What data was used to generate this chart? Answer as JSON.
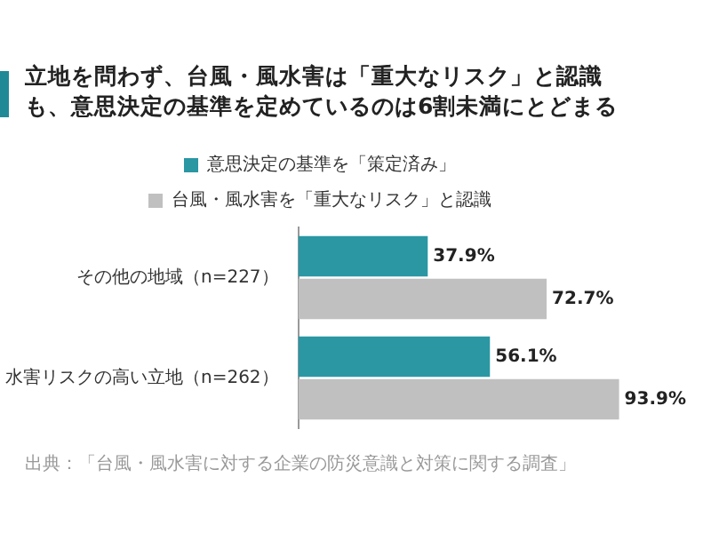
{
  "chart_data": {
    "type": "bar",
    "orientation": "horizontal",
    "title": "立地を問わず、台風・風水害は「重大なリスク」と認識も、意思決定の基準を定めているのは6割未満にとどまる",
    "categories": [
      "その他の地域（n=227）",
      "水害リスクの高い立地（n=262）"
    ],
    "series": [
      {
        "name": "意思決定の基準を「策定済み」",
        "color": "#2a97a3",
        "values": [
          37.9,
          56.1
        ],
        "value_labels": [
          "37.9%",
          "56.1%"
        ]
      },
      {
        "name": "台風・風水害を「重大なリスク」と認識",
        "color": "#c0c0c0",
        "values": [
          72.7,
          93.9
        ],
        "value_labels": [
          "72.7%",
          "93.9%"
        ]
      }
    ],
    "legend": "top",
    "annotations": [
      "出典：「台風・風水害に対する企業の防災意識と対策に関する調査」"
    ]
  }
}
